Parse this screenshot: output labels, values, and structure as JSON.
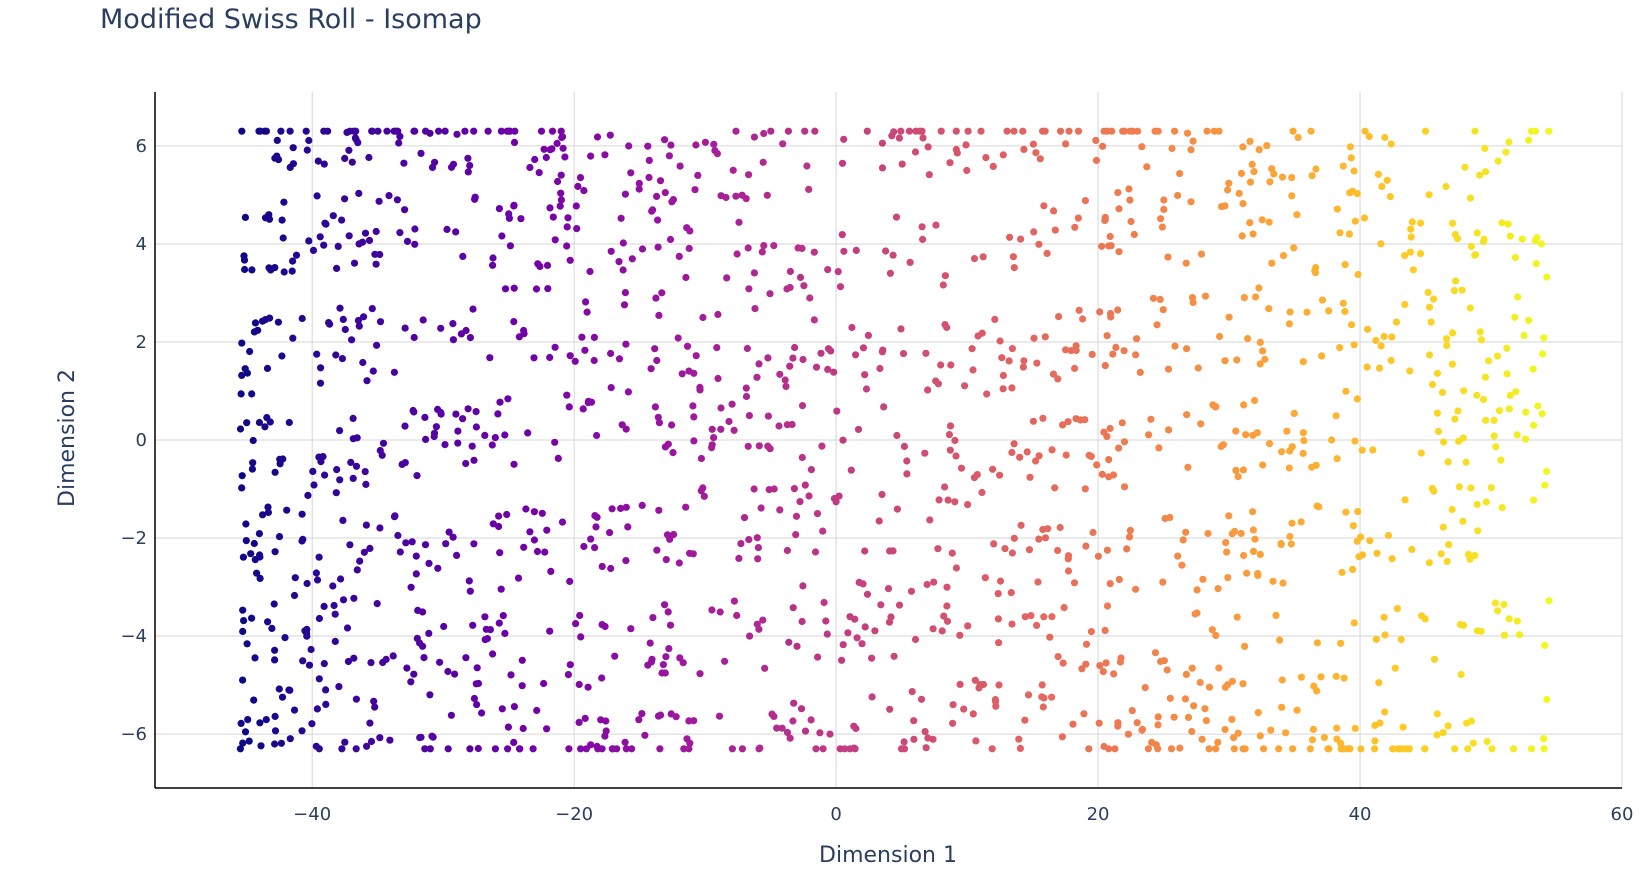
{
  "chart_data": {
    "type": "scatter",
    "title": "Modified Swiss Roll - Isomap",
    "xlabel": "Dimension 1",
    "ylabel": "Dimension 2",
    "xlim": [
      -52,
      60
    ],
    "ylim": [
      -7.1,
      7.1
    ],
    "x_ticks": [
      -40,
      -20,
      0,
      20,
      40,
      60
    ],
    "x_tick_labels": [
      "−40",
      "−20",
      "0",
      "20",
      "40",
      "60"
    ],
    "y_ticks": [
      -6,
      -4,
      -2,
      0,
      2,
      4,
      6
    ],
    "y_tick_labels": [
      "−6",
      "−4",
      "−2",
      "0",
      "2",
      "4",
      "6"
    ],
    "grid": true,
    "legend": "none",
    "colorscale": "plasma",
    "colorscale_stops": [
      "#0d0887",
      "#46039f",
      "#7201a8",
      "#9c179e",
      "#bd3786",
      "#d8576b",
      "#ed7953",
      "#fb9f3a",
      "#fdca26",
      "#f0f921"
    ],
    "color_by": "x",
    "x_range_of_points": [
      -45.5,
      54.5
    ],
    "y_range_of_points": [
      -6.3,
      6.3
    ],
    "point_count": 1700
  }
}
